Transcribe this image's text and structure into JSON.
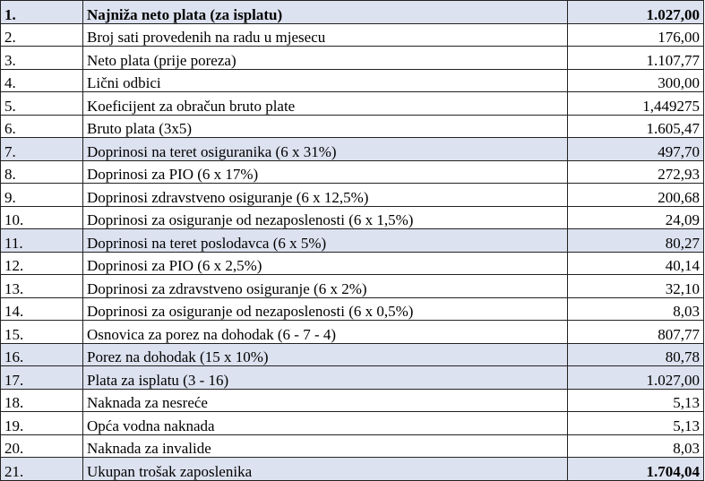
{
  "table": {
    "rows": [
      [
        "1.",
        "Najniža neto plata (za isplatu)",
        "1.027,00"
      ],
      [
        "2.",
        "Broj sati provedenih na radu u mjesecu",
        "176,00"
      ],
      [
        "3.",
        "Neto plata  (prije poreza)",
        "1.107,77"
      ],
      [
        "4.",
        "Lični odbici",
        "300,00"
      ],
      [
        "5.",
        "Koeficijent za obračun bruto plate",
        "1,449275"
      ],
      [
        "6.",
        "Bruto plata (3x5)",
        "1.605,47"
      ],
      [
        "7.",
        "Doprinosi na teret osiguranika (6 x 31%)",
        "497,70"
      ],
      [
        "8.",
        "Doprinosi za PIO (6 x 17%)",
        "272,93"
      ],
      [
        "9.",
        "Doprinosi zdravstveno osiguranje (6 x 12,5%)",
        "200,68"
      ],
      [
        "10.",
        "Doprinosi za osiguranje od nezaposlenosti (6 x 1,5%)",
        "24,09"
      ],
      [
        "11.",
        "Doprinosi na teret poslodavca (6 x 5%)",
        "80,27"
      ],
      [
        "12.",
        "Doprinosi za PIO (6 x 2,5%)",
        "40,14"
      ],
      [
        "13.",
        "Doprinosi za zdravstveno osiguranje (6 x 2%)",
        "32,10"
      ],
      [
        "14.",
        "Doprinosi za osiguranje od nezaposlenosti (6 x 0,5%)",
        "8,03"
      ],
      [
        "15.",
        "Osnovica za porez na dohodak (6 - 7 - 4)",
        "807,77"
      ],
      [
        "16.",
        "Porez na dohodak (15 x 10%)",
        "80,78"
      ],
      [
        "17.",
        "Plata za isplatu (3 - 16)",
        "1.027,00"
      ],
      [
        "18.",
        "Naknada za nesreće",
        "5,13"
      ],
      [
        "19.",
        "Opća vodna naknada",
        "5,13"
      ],
      [
        "20.",
        "Naknada za invalide",
        "8,03"
      ],
      [
        "21.",
        "Ukupan trošak zaposlenika",
        "1.704,04"
      ]
    ]
  }
}
